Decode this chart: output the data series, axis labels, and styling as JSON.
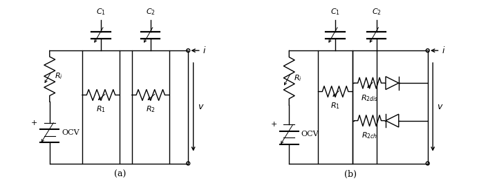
{
  "label_a": "(a)",
  "label_b": "(b)",
  "bg_color": "#ffffff",
  "line_color": "#000000",
  "figsize": [
    6.93,
    2.75
  ],
  "dpi": 100
}
